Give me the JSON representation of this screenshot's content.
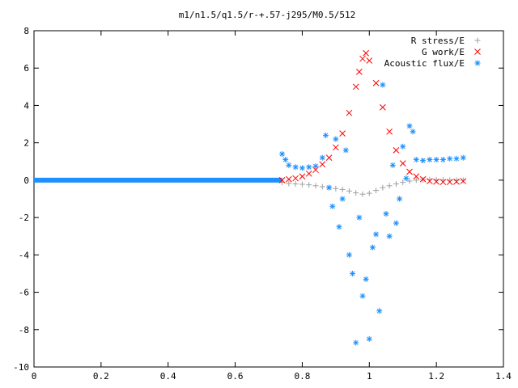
{
  "chart_data": {
    "type": "scatter",
    "title": "m1/n1.5/q1.5/r-+.57-j295/M0.5/512",
    "xlabel": "",
    "ylabel": "",
    "xlim": [
      0,
      1.4
    ],
    "ylim": [
      -10,
      8
    ],
    "xticks": [
      "0",
      "0.2",
      "0.4",
      "0.6",
      "0.8",
      "1",
      "1.2",
      "1.4"
    ],
    "yticks": [
      "-10",
      "-8",
      "-6",
      "-4",
      "-2",
      "0",
      "2",
      "4",
      "6",
      "8"
    ],
    "grid": false,
    "legend_position": "top-right",
    "series": [
      {
        "name": "R stress/E",
        "marker": "plus",
        "color": "#a0a0a0",
        "points": [
          [
            0.74,
            -0.12
          ],
          [
            0.76,
            -0.18
          ],
          [
            0.78,
            -0.2
          ],
          [
            0.8,
            -0.22
          ],
          [
            0.82,
            -0.25
          ],
          [
            0.84,
            -0.3
          ],
          [
            0.86,
            -0.35
          ],
          [
            0.88,
            -0.4
          ],
          [
            0.9,
            -0.45
          ],
          [
            0.92,
            -0.5
          ],
          [
            0.94,
            -0.58
          ],
          [
            0.96,
            -0.68
          ],
          [
            0.98,
            -0.75
          ],
          [
            1.0,
            -0.7
          ],
          [
            1.02,
            -0.55
          ],
          [
            1.04,
            -0.4
          ],
          [
            1.06,
            -0.3
          ],
          [
            1.08,
            -0.2
          ],
          [
            1.1,
            -0.12
          ],
          [
            1.12,
            -0.05
          ],
          [
            1.14,
            0.0
          ],
          [
            1.16,
            0.02
          ],
          [
            1.18,
            0.03
          ],
          [
            1.2,
            0.02
          ],
          [
            1.22,
            0.01
          ],
          [
            1.24,
            0.0
          ],
          [
            1.26,
            0.0
          ],
          [
            1.28,
            0.0
          ]
        ]
      },
      {
        "name": "G work/E",
        "marker": "cross",
        "color": "#ff0000",
        "points": [
          [
            0.74,
            0.0
          ],
          [
            0.76,
            0.05
          ],
          [
            0.78,
            0.1
          ],
          [
            0.8,
            0.2
          ],
          [
            0.82,
            0.35
          ],
          [
            0.84,
            0.55
          ],
          [
            0.86,
            0.85
          ],
          [
            0.88,
            1.2
          ],
          [
            0.9,
            1.75
          ],
          [
            0.92,
            2.5
          ],
          [
            0.94,
            3.6
          ],
          [
            0.96,
            5.0
          ],
          [
            0.97,
            5.8
          ],
          [
            0.98,
            6.5
          ],
          [
            0.99,
            6.8
          ],
          [
            1.0,
            6.4
          ],
          [
            1.02,
            5.2
          ],
          [
            1.04,
            3.9
          ],
          [
            1.06,
            2.6
          ],
          [
            1.08,
            1.6
          ],
          [
            1.1,
            0.9
          ],
          [
            1.12,
            0.45
          ],
          [
            1.14,
            0.2
          ],
          [
            1.16,
            0.05
          ],
          [
            1.18,
            -0.05
          ],
          [
            1.2,
            -0.08
          ],
          [
            1.22,
            -0.1
          ],
          [
            1.24,
            -0.1
          ],
          [
            1.26,
            -0.08
          ],
          [
            1.28,
            -0.05
          ]
        ]
      },
      {
        "name": "Acoustic flux/E",
        "marker": "star",
        "color": "#1e90ff",
        "points": [
          [
            0.74,
            1.4
          ],
          [
            0.75,
            1.1
          ],
          [
            0.76,
            0.8
          ],
          [
            0.78,
            0.7
          ],
          [
            0.8,
            0.65
          ],
          [
            0.82,
            0.7
          ],
          [
            0.84,
            0.75
          ],
          [
            0.86,
            1.2
          ],
          [
            0.87,
            2.4
          ],
          [
            0.88,
            -0.4
          ],
          [
            0.89,
            -1.4
          ],
          [
            0.9,
            2.2
          ],
          [
            0.91,
            -2.5
          ],
          [
            0.92,
            -1.0
          ],
          [
            0.93,
            1.6
          ],
          [
            0.94,
            -4.0
          ],
          [
            0.95,
            -5.0
          ],
          [
            0.96,
            -8.7
          ],
          [
            0.97,
            -2.0
          ],
          [
            0.98,
            -6.2
          ],
          [
            0.99,
            -5.3
          ],
          [
            1.0,
            -8.5
          ],
          [
            1.01,
            -3.6
          ],
          [
            1.02,
            -2.9
          ],
          [
            1.03,
            -7.0
          ],
          [
            1.04,
            5.1
          ],
          [
            1.05,
            -1.8
          ],
          [
            1.06,
            -3.0
          ],
          [
            1.07,
            0.8
          ],
          [
            1.08,
            -2.3
          ],
          [
            1.09,
            -1.0
          ],
          [
            1.1,
            1.8
          ],
          [
            1.11,
            0.1
          ],
          [
            1.12,
            2.9
          ],
          [
            1.13,
            2.6
          ],
          [
            1.14,
            1.1
          ],
          [
            1.16,
            1.05
          ],
          [
            1.18,
            1.1
          ],
          [
            1.2,
            1.1
          ],
          [
            1.22,
            1.1
          ],
          [
            1.24,
            1.15
          ],
          [
            1.26,
            1.15
          ],
          [
            1.28,
            1.2
          ]
        ]
      }
    ]
  }
}
